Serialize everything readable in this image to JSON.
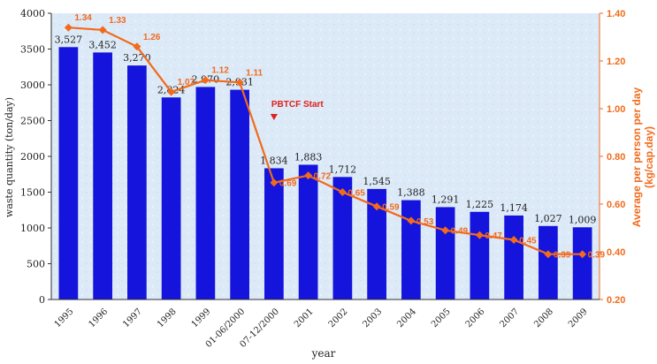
{
  "chart_data": {
    "type": "bar",
    "title": "",
    "xlabel": "year",
    "ylabel": "waste quantity (ton/day)",
    "ylabel_right": "Average per person per day",
    "ylabel_right_unit": "(kg/cap.day)",
    "ylim": [
      0,
      4000
    ],
    "ylim_right": [
      0.2,
      1.4
    ],
    "y_ticks": [
      "0",
      "500",
      "1000",
      "1500",
      "2000",
      "2500",
      "3000",
      "3500",
      "4000"
    ],
    "y_right_ticks": [
      "0.20",
      "0.40",
      "0.60",
      "0.80",
      "1.00",
      "1.20",
      "1.40"
    ],
    "categories": [
      "1995",
      "1996",
      "1997",
      "1998",
      "1999",
      "01-06/2000",
      "07-12/2000",
      "2001",
      "2002",
      "2003",
      "2004",
      "2005",
      "2006",
      "2007",
      "2008",
      "2009"
    ],
    "series": [
      {
        "axis": "left",
        "type": "bar",
        "values": [
          3527,
          3452,
          3270,
          2824,
          2970,
          2931,
          1834,
          1883,
          1712,
          1545,
          1388,
          1291,
          1225,
          1174,
          1027,
          1009
        ],
        "labels": [
          "3,527",
          "3,452",
          "3,270",
          "2,824",
          "2,970",
          "2,931",
          "1,834",
          "1,883",
          "1,712",
          "1,545",
          "1,388",
          "1,291",
          "1,225",
          "1,174",
          "1,027",
          "1,009"
        ]
      },
      {
        "axis": "right",
        "type": "line",
        "values": [
          1.34,
          1.33,
          1.26,
          1.07,
          1.12,
          1.11,
          0.69,
          0.72,
          0.65,
          0.59,
          0.53,
          0.49,
          0.47,
          0.45,
          0.39,
          0.39
        ],
        "labels": [
          "1.34",
          "1.33",
          "1.26",
          "1.07",
          "1.12",
          "1.11",
          "0.69",
          "0.72",
          "0.65",
          "0.59",
          "0.53",
          "0.49",
          "0.47",
          "0.45",
          "0.39",
          "0.39"
        ]
      }
    ],
    "annotations": [
      {
        "text": "PBTCF Start",
        "category": "07-12/2000"
      }
    ],
    "grid": false,
    "legend": "none"
  },
  "colors": {
    "bar": "#1414dc",
    "line": "#f26a1b",
    "right_axis_text": "#f26a1b",
    "annotation": "#e0201c",
    "plot_background": "#dbe8f6"
  }
}
